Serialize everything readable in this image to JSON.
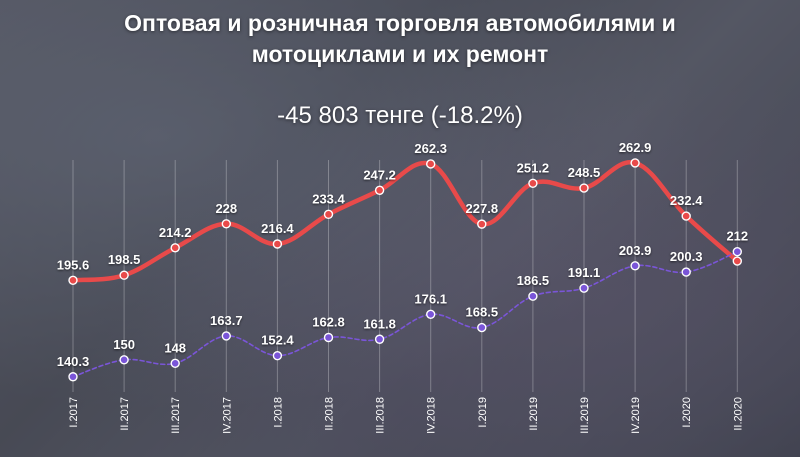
{
  "title_line1": "Оптовая и розничная торговля автомобилями и",
  "title_line2": "мотоциклами и их ремонт",
  "subtitle": "-45 803 тенге (-18.2%)",
  "chart_data": {
    "type": "line",
    "categories": [
      "I.2017",
      "II.2017",
      "III.2017",
      "IV.2017",
      "I.2018",
      "II.2018",
      "III.2018",
      "IV.2018",
      "I.2019",
      "II.2019",
      "III.2019",
      "IV.2019",
      "I.2020",
      "II.2020"
    ],
    "series": [
      {
        "values": [
          195.6,
          198.5,
          214.2,
          228,
          216.4,
          233.4,
          247.2,
          262.3,
          227.8,
          251.2,
          248.5,
          262.9,
          232.4,
          206.6
        ],
        "labels": [
          "195.6",
          "198.5",
          "214.2",
          "228",
          "216.4",
          "233.4",
          "247.2",
          "262.3",
          "227.8",
          "251.2",
          "248.5",
          "262.9",
          "232.4",
          ""
        ],
        "color": "#e84a4a",
        "line_style": "solid"
      },
      {
        "values": [
          140.3,
          150,
          148,
          163.7,
          152.4,
          162.8,
          161.8,
          176.1,
          168.5,
          186.5,
          191.1,
          203.9,
          200.3,
          212
        ],
        "labels": [
          "140.3",
          "150",
          "148",
          "163.7",
          "152.4",
          "162.8",
          "161.8",
          "176.1",
          "168.5",
          "186.5",
          "191.1",
          "203.9",
          "200.3",
          "212"
        ],
        "color": "#7a55d8",
        "line_style": "dashed"
      }
    ],
    "ylim": [
      135,
      268
    ],
    "grid": "vertical",
    "xlabel": "",
    "ylabel": ""
  }
}
